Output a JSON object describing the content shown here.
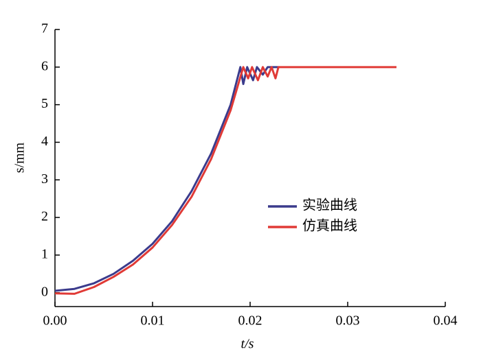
{
  "chart_data": {
    "type": "line",
    "xlabel": "t/s",
    "ylabel": "s/mm",
    "xlim": [
      0,
      0.04
    ],
    "ylim": [
      -0.37,
      7
    ],
    "xticks": [
      {
        "value": 0,
        "label": "0.00"
      },
      0.01,
      0.02,
      0.03,
      0.04
    ],
    "yticks": [
      0,
      1,
      2,
      3,
      4,
      5,
      6,
      7
    ],
    "series": [
      {
        "name": "实验曲线",
        "color": "#3b3b8c",
        "x": [
          0,
          0.002,
          0.004,
          0.006,
          0.008,
          0.01,
          0.012,
          0.014,
          0.016,
          0.018,
          0.019,
          0.0193,
          0.0197,
          0.0203,
          0.0207,
          0.0213,
          0.0218,
          0.023
        ],
        "values": [
          0.05,
          0.1,
          0.25,
          0.5,
          0.85,
          1.3,
          1.9,
          2.7,
          3.7,
          5.0,
          6.0,
          5.55,
          6.0,
          5.65,
          6.0,
          5.8,
          6.0,
          6.0
        ]
      },
      {
        "name": "仿真曲线",
        "color": "#e03a36",
        "x": [
          0,
          0.002,
          0.004,
          0.006,
          0.008,
          0.01,
          0.012,
          0.014,
          0.016,
          0.018,
          0.0193,
          0.0198,
          0.0202,
          0.0208,
          0.0213,
          0.0218,
          0.0222,
          0.0226,
          0.0229,
          0.035
        ],
        "values": [
          -0.02,
          -0.03,
          0.15,
          0.42,
          0.75,
          1.2,
          1.8,
          2.55,
          3.55,
          4.85,
          6.0,
          5.7,
          6.0,
          5.65,
          6.0,
          5.75,
          6.0,
          5.7,
          6.0,
          6.0
        ]
      }
    ]
  }
}
